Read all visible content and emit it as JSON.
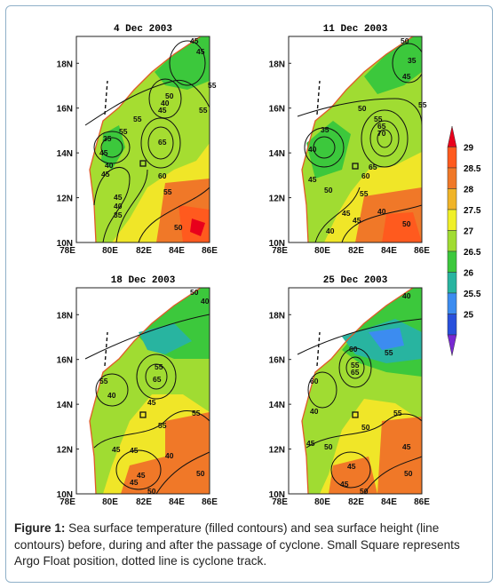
{
  "panels": [
    {
      "date": "4 Dec 2003",
      "ssh_labels": [
        "45",
        "45",
        "50",
        "40",
        "45",
        "55",
        "55",
        "65",
        "55",
        "60",
        "40",
        "55",
        "45",
        "40",
        "35",
        "45",
        "50",
        "35",
        "45",
        "55"
      ]
    },
    {
      "date": "11 Dec 2003",
      "ssh_labels": [
        "50",
        "35",
        "45",
        "50",
        "55",
        "65",
        "70",
        "65",
        "60",
        "35",
        "40",
        "45",
        "50",
        "55",
        "40",
        "40",
        "45",
        "50",
        "45",
        "55"
      ]
    },
    {
      "date": "18 Dec 2003",
      "ssh_labels": [
        "50",
        "40",
        "55",
        "55",
        "65",
        "45",
        "55",
        "40",
        "55",
        "40",
        "45",
        "45",
        "50",
        "45",
        "50",
        "45"
      ]
    },
    {
      "date": "25 Dec 2003",
      "ssh_labels": [
        "40",
        "60",
        "55",
        "65",
        "55",
        "60",
        "40",
        "50",
        "45",
        "50",
        "55",
        "45",
        "45",
        "50",
        "50",
        "45"
      ]
    }
  ],
  "lat_ticks": [
    "10N",
    "12N",
    "14N",
    "16N",
    "18N"
  ],
  "lon_ticks": [
    "78E",
    "80E",
    "82E",
    "84E",
    "86E"
  ],
  "colorbar": {
    "labels": [
      "29",
      "28.5",
      "28",
      "27.5",
      "27",
      "26.5",
      "26",
      "25.5",
      "25"
    ],
    "colors": [
      "#e8001c",
      "#ff5a1e",
      "#f07828",
      "#f0b428",
      "#f0f028",
      "#a0dc32",
      "#3cc83c",
      "#28b4a0",
      "#3c8cf0",
      "#2850dc",
      "#7828d2"
    ]
  },
  "caption": {
    "label": "Figure 1:",
    "text": " Sea surface temperature (filled contours) and sea surface height (line contours) before, during and after the passage of cyclone. Small Square represents Argo Float position, dotted line is cyclone track."
  }
}
